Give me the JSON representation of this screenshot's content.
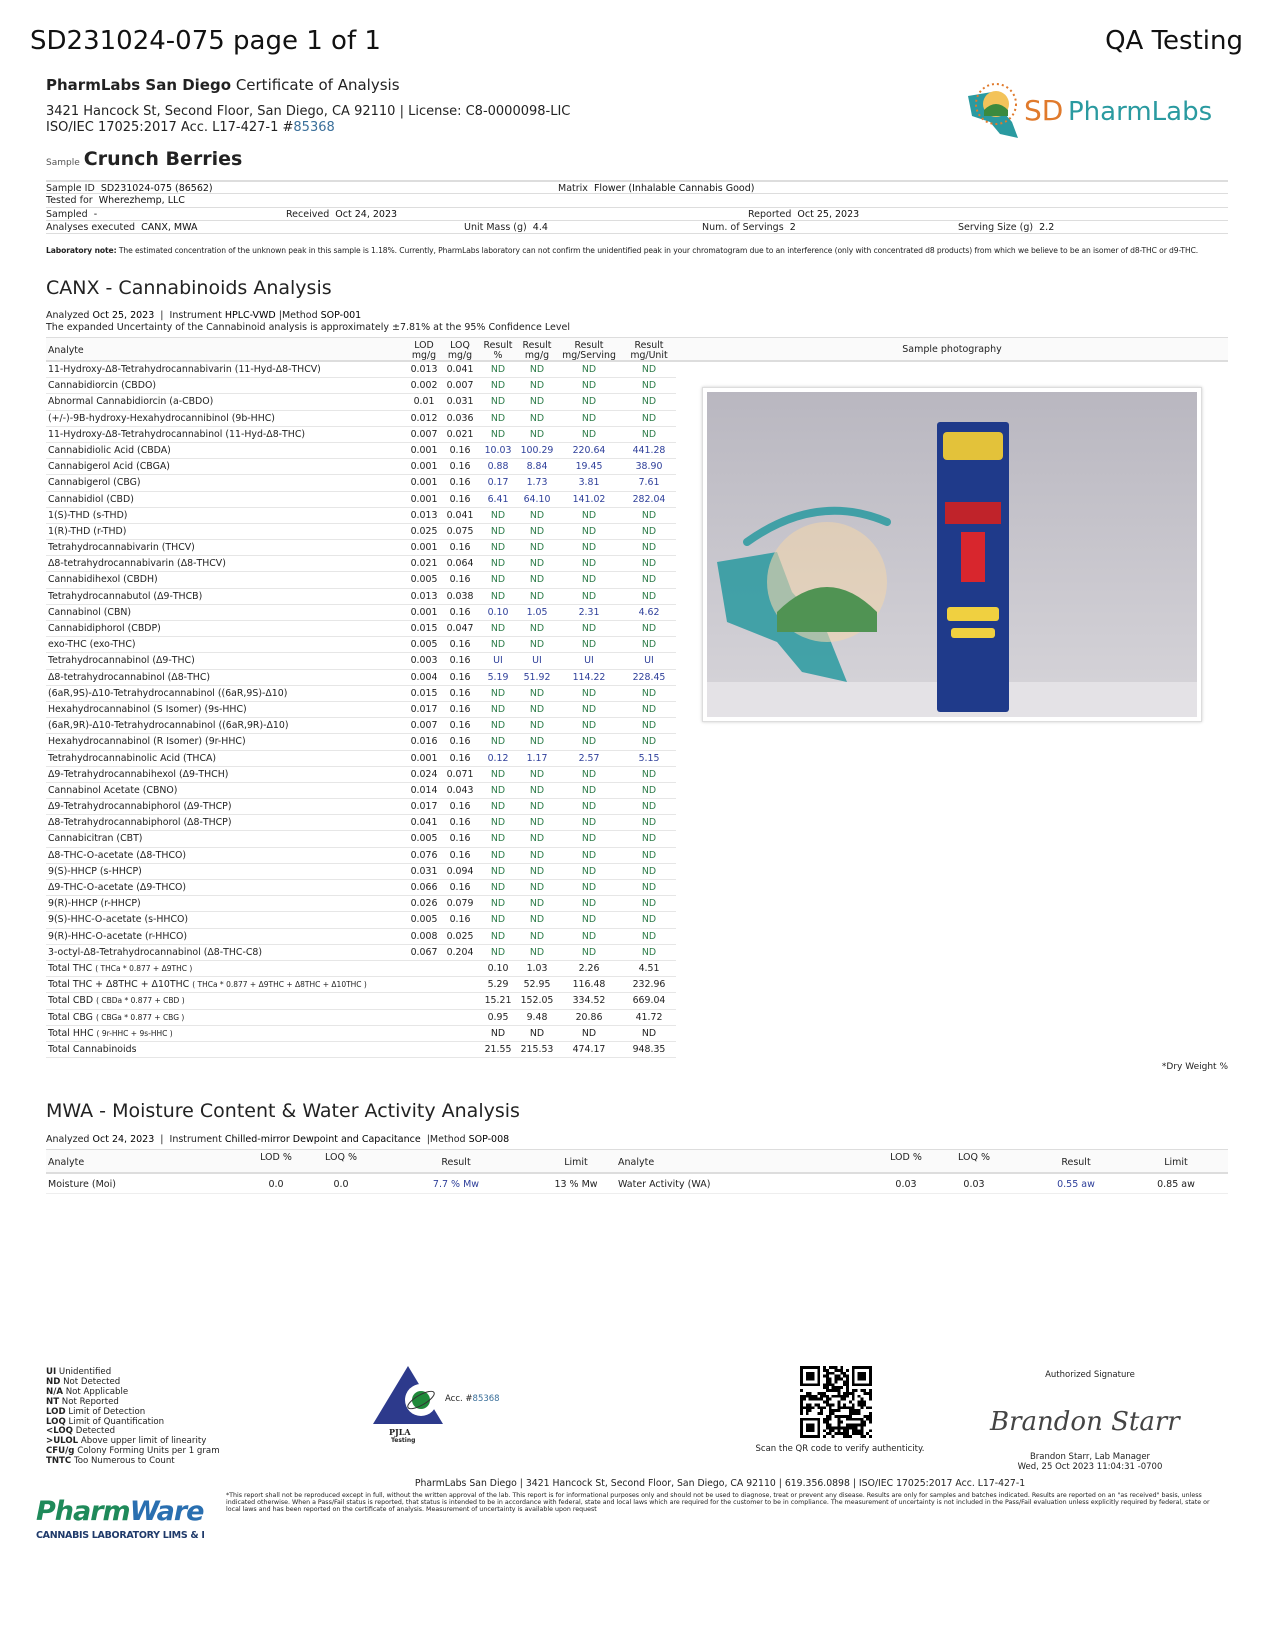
{
  "header": {
    "doc_title": "SD231024-075 page 1 of 1",
    "right_title": "QA Testing",
    "lab_name": "PharmLabs San Diego",
    "doc_type": "Certificate of Analysis",
    "address": "3421 Hancock St, Second Floor, San Diego, CA 92110 |  License: C8-0000098-LIC",
    "iso": "ISO/IEC 17025:2017 Acc. L17-427-1 #",
    "iso_link": "85368",
    "logo_text": "SDPharmLabs",
    "logo_text_sd": "SD",
    "logo_text_rest": "PharmLabs"
  },
  "sample": {
    "label": "Sample",
    "name": "Crunch Berries"
  },
  "info": {
    "sample_id_label": "Sample ID",
    "sample_id": "SD231024-075 (86562)",
    "matrix_label": "Matrix",
    "matrix": "Flower (Inhalable Cannabis Good)",
    "tested_for_label": "Tested for",
    "tested_for": "Wherezhemp, LLC",
    "sampled_label": "Sampled",
    "sampled": "-",
    "received_label": "Received",
    "received": "Oct 24, 2023",
    "reported_label": "Reported",
    "reported": "Oct 25, 2023",
    "analyses_label": "Analyses executed",
    "analyses": "CANX, MWA",
    "unit_mass_label": "Unit Mass (g)",
    "unit_mass": "4.4",
    "servings_label": "Num. of Servings",
    "servings": "2",
    "serving_size_label": "Serving Size (g)",
    "serving_size": "2.2"
  },
  "lab_note": {
    "label": "Laboratory note:",
    "text": "The estimated concentration of the unknown peak in this sample is 1.18%. Currently, PharmLabs laboratory can not confirm the unidentified peak in your chromatogram due to an interference (only with concentrated d8 products) from which we believe to be an isomer of d8-THC or d9-THC."
  },
  "canx": {
    "title": "CANX - Cannabinoids Analysis",
    "analyzed_label": "Analyzed",
    "analyzed": "Oct 25, 2023",
    "instrument_label": "Instrument",
    "instrument": "HPLC-VWD",
    "method_label": "Method",
    "method": "SOP-001",
    "uncertainty": "The expanded Uncertainty of the Cannabinoid analysis is approximately ±7.81% at the 95% Confidence Level",
    "columns": [
      "Analyte",
      "LOD mg/g",
      "LOQ mg/g",
      "Result %",
      "Result mg/g",
      "Result mg/Serving",
      "Result mg/Unit"
    ],
    "rows": [
      [
        "11-Hydroxy-Δ8-Tetrahydrocannabivarin (11-Hyd-Δ8-THCV)",
        "0.013",
        "0.041",
        "ND",
        "ND",
        "ND",
        "ND"
      ],
      [
        "Cannabidiorcin (CBDO)",
        "0.002",
        "0.007",
        "ND",
        "ND",
        "ND",
        "ND"
      ],
      [
        "Abnormal Cannabidiorcin (a-CBDO)",
        "0.01",
        "0.031",
        "ND",
        "ND",
        "ND",
        "ND"
      ],
      [
        "(+/-)-9B-hydroxy-Hexahydrocannibinol (9b-HHC)",
        "0.012",
        "0.036",
        "ND",
        "ND",
        "ND",
        "ND"
      ],
      [
        "11-Hydroxy-Δ8-Tetrahydrocannabinol (11-Hyd-Δ8-THC)",
        "0.007",
        "0.021",
        "ND",
        "ND",
        "ND",
        "ND"
      ],
      [
        "Cannabidiolic Acid (CBDA)",
        "0.001",
        "0.16",
        "10.03",
        "100.29",
        "220.64",
        "441.28"
      ],
      [
        "Cannabigerol Acid (CBGA)",
        "0.001",
        "0.16",
        "0.88",
        "8.84",
        "19.45",
        "38.90"
      ],
      [
        "Cannabigerol (CBG)",
        "0.001",
        "0.16",
        "0.17",
        "1.73",
        "3.81",
        "7.61"
      ],
      [
        "Cannabidiol (CBD)",
        "0.001",
        "0.16",
        "6.41",
        "64.10",
        "141.02",
        "282.04"
      ],
      [
        "1(S)-THD (s-THD)",
        "0.013",
        "0.041",
        "ND",
        "ND",
        "ND",
        "ND"
      ],
      [
        "1(R)-THD (r-THD)",
        "0.025",
        "0.075",
        "ND",
        "ND",
        "ND",
        "ND"
      ],
      [
        "Tetrahydrocannabivarin (THCV)",
        "0.001",
        "0.16",
        "ND",
        "ND",
        "ND",
        "ND"
      ],
      [
        "Δ8-tetrahydrocannabivarin (Δ8-THCV)",
        "0.021",
        "0.064",
        "ND",
        "ND",
        "ND",
        "ND"
      ],
      [
        "Cannabidihexol (CBDH)",
        "0.005",
        "0.16",
        "ND",
        "ND",
        "ND",
        "ND"
      ],
      [
        "Tetrahydrocannabutol (Δ9-THCB)",
        "0.013",
        "0.038",
        "ND",
        "ND",
        "ND",
        "ND"
      ],
      [
        "Cannabinol (CBN)",
        "0.001",
        "0.16",
        "0.10",
        "1.05",
        "2.31",
        "4.62"
      ],
      [
        "Cannabidiphorol (CBDP)",
        "0.015",
        "0.047",
        "ND",
        "ND",
        "ND",
        "ND"
      ],
      [
        "exo-THC (exo-THC)",
        "0.005",
        "0.16",
        "ND",
        "ND",
        "ND",
        "ND"
      ],
      [
        "Tetrahydrocannabinol (Δ9-THC)",
        "0.003",
        "0.16",
        "UI",
        "UI",
        "UI",
        "UI"
      ],
      [
        "Δ8-tetrahydrocannabinol (Δ8-THC)",
        "0.004",
        "0.16",
        "5.19",
        "51.92",
        "114.22",
        "228.45"
      ],
      [
        "(6aR,9S)-Δ10-Tetrahydrocannabinol ((6aR,9S)-Δ10)",
        "0.015",
        "0.16",
        "ND",
        "ND",
        "ND",
        "ND"
      ],
      [
        "Hexahydrocannabinol (S Isomer) (9s-HHC)",
        "0.017",
        "0.16",
        "ND",
        "ND",
        "ND",
        "ND"
      ],
      [
        "(6aR,9R)-Δ10-Tetrahydrocannabinol ((6aR,9R)-Δ10)",
        "0.007",
        "0.16",
        "ND",
        "ND",
        "ND",
        "ND"
      ],
      [
        "Hexahydrocannabinol (R Isomer) (9r-HHC)",
        "0.016",
        "0.16",
        "ND",
        "ND",
        "ND",
        "ND"
      ],
      [
        "Tetrahydrocannabinolic Acid (THCA)",
        "0.001",
        "0.16",
        "0.12",
        "1.17",
        "2.57",
        "5.15"
      ],
      [
        "Δ9-Tetrahydrocannabihexol (Δ9-THCH)",
        "0.024",
        "0.071",
        "ND",
        "ND",
        "ND",
        "ND"
      ],
      [
        "Cannabinol Acetate (CBNO)",
        "0.014",
        "0.043",
        "ND",
        "ND",
        "ND",
        "ND"
      ],
      [
        "Δ9-Tetrahydrocannabiphorol (Δ9-THCP)",
        "0.017",
        "0.16",
        "ND",
        "ND",
        "ND",
        "ND"
      ],
      [
        "Δ8-Tetrahydrocannabiphorol (Δ8-THCP)",
        "0.041",
        "0.16",
        "ND",
        "ND",
        "ND",
        "ND"
      ],
      [
        "Cannabicitran (CBT)",
        "0.005",
        "0.16",
        "ND",
        "ND",
        "ND",
        "ND"
      ],
      [
        "Δ8-THC-O-acetate (Δ8-THCO)",
        "0.076",
        "0.16",
        "ND",
        "ND",
        "ND",
        "ND"
      ],
      [
        "9(S)-HHCP (s-HHCP)",
        "0.031",
        "0.094",
        "ND",
        "ND",
        "ND",
        "ND"
      ],
      [
        "Δ9-THC-O-acetate (Δ9-THCO)",
        "0.066",
        "0.16",
        "ND",
        "ND",
        "ND",
        "ND"
      ],
      [
        "9(R)-HHCP (r-HHCP)",
        "0.026",
        "0.079",
        "ND",
        "ND",
        "ND",
        "ND"
      ],
      [
        "9(S)-HHC-O-acetate (s-HHCO)",
        "0.005",
        "0.16",
        "ND",
        "ND",
        "ND",
        "ND"
      ],
      [
        "9(R)-HHC-O-acetate (r-HHCO)",
        "0.008",
        "0.025",
        "ND",
        "ND",
        "ND",
        "ND"
      ],
      [
        "3-octyl-Δ8-Tetrahydrocannabinol (Δ8-THC-C8)",
        "0.067",
        "0.204",
        "ND",
        "ND",
        "ND",
        "ND"
      ]
    ],
    "totals": [
      {
        "label": "Total THC",
        "formula": "( THCa * 0.877 + Δ9THC )",
        "values": [
          "0.10",
          "1.03",
          "2.26",
          "4.51"
        ]
      },
      {
        "label": "Total THC + Δ8THC + Δ10THC",
        "formula": "( THCa * 0.877 + Δ9THC + Δ8THC + Δ10THC )",
        "values": [
          "5.29",
          "52.95",
          "116.48",
          "232.96"
        ]
      },
      {
        "label": "Total CBD",
        "formula": "( CBDa * 0.877 + CBD )",
        "values": [
          "15.21",
          "152.05",
          "334.52",
          "669.04"
        ]
      },
      {
        "label": "Total CBG",
        "formula": "( CBGa * 0.877 + CBG )",
        "values": [
          "0.95",
          "9.48",
          "20.86",
          "41.72"
        ]
      },
      {
        "label": "Total HHC",
        "formula": "( 9r-HHC + 9s-HHC )",
        "values": [
          "ND",
          "ND",
          "ND",
          "ND"
        ]
      },
      {
        "label": "Total Cannabinoids",
        "formula": "",
        "values": [
          "21.55",
          "215.53",
          "474.17",
          "948.35"
        ]
      }
    ],
    "photo_header": "Sample photography",
    "dry_weight": "*Dry Weight %"
  },
  "mwa": {
    "title": "MWA - Moisture Content & Water Activity Analysis",
    "analyzed_label": "Analyzed",
    "analyzed": "Oct 24, 2023",
    "instrument_label": "Instrument",
    "instrument": "Chilled-mirror Dewpoint and Capacitance",
    "method_label": "Method",
    "method": "SOP-008",
    "columns": [
      "Analyte",
      "LOD %",
      "LOQ %",
      "Result",
      "Limit",
      "Analyte",
      "LOD %",
      "LOQ %",
      "Result",
      "Limit"
    ],
    "row": [
      "Moisture (Moi)",
      "0.0",
      "0.0",
      "7.7 % Mw",
      "13 % Mw",
      "Water Activity (WA)",
      "0.03",
      "0.03",
      "0.55 aw",
      "0.85 aw"
    ]
  },
  "legend": [
    [
      "UI",
      "Unidentified"
    ],
    [
      "ND",
      "Not Detected"
    ],
    [
      "N/A",
      "Not Applicable"
    ],
    [
      "NT",
      "Not Reported"
    ],
    [
      "LOD",
      "Limit of Detection"
    ],
    [
      "LOQ",
      "Limit of Quantification"
    ],
    [
      "<LOQ",
      "Detected"
    ],
    [
      ">ULOL",
      "Above upper limit of linearity"
    ],
    [
      "CFU/g",
      "Colony Forming Units per 1 gram"
    ],
    [
      "TNTC",
      "Too Numerous to Count"
    ]
  ],
  "pjla": {
    "acc_label": "Acc. #",
    "acc": "85368",
    "name": "PJLA",
    "sub": "Testing"
  },
  "qr_caption": "Scan the QR code to verify authenticity.",
  "signature": {
    "label": "Authorized Signature",
    "script": "Brandon Starr",
    "name": "Brandon Starr, Lab Manager",
    "date": "Wed, 25 Oct 2023 11:04:31 -0700"
  },
  "footer": {
    "address": "PharmLabs San Diego | 3421 Hancock St, Second Floor, San Diego, CA 92110 | 619.356.0898 | ISO/IEC 17025:2017 Acc. L17-427-1",
    "disclaimer": "*This report shall not be reproduced except in full, without the written approval of the lab. This report is for informational purposes only and should not be used to diagnose, treat or prevent any disease. Results are only for samples and batches indicated. Results are reported on an \"as received\" basis, unless indicated otherwise. When a Pass/Fail status is reported, that status is intended to be in accordance with federal, state and local laws which are required for the customer to be in compliance. The measurement of uncertainty is not included in the Pass/Fail evaluation unless explicitly required by federal, state or local laws and has been reported on the certificate of analysis. Measurement of uncertainty is available upon request",
    "pharmware": "PharmWare",
    "pharmware_sub": "CANNABIS LABORATORY LIMS & ELN"
  },
  "colors": {
    "nd": "#2e7d4a",
    "result": "#2e3f9a",
    "link": "#3a6f9a",
    "logo_orange": "#e07a2c",
    "logo_teal": "#2a9aa0"
  }
}
